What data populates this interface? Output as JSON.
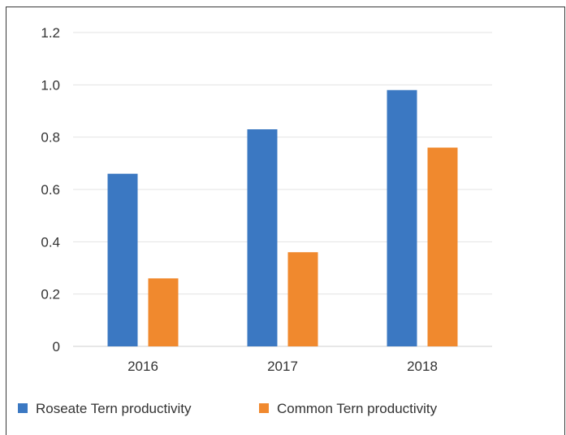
{
  "chart_data": {
    "type": "bar",
    "categories": [
      "2016",
      "2017",
      "2018"
    ],
    "series": [
      {
        "name": "Roseate Tern productivity",
        "values": [
          0.66,
          0.83,
          0.98
        ],
        "color": "#3b78c2"
      },
      {
        "name": "Common Tern productivity",
        "values": [
          0.26,
          0.36,
          0.76
        ],
        "color": "#f0892e"
      }
    ],
    "y_ticks": [
      "0",
      "0.2",
      "0.4",
      "0.6",
      "0.8",
      "1.0",
      "1.2"
    ],
    "ylim": [
      0,
      1.2
    ],
    "grid": true,
    "legend_position": "bottom-left"
  }
}
